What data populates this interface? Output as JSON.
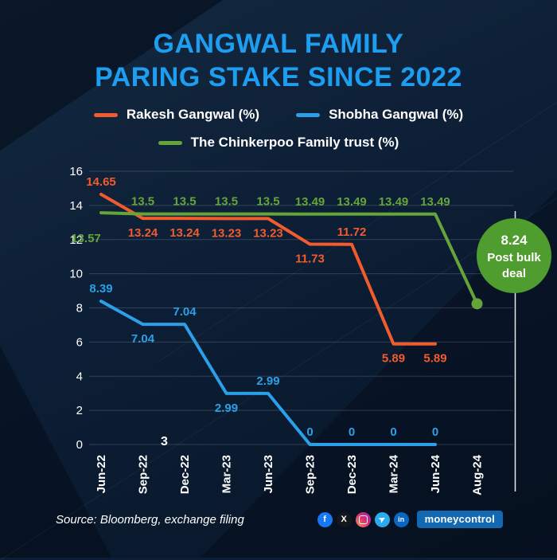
{
  "title": {
    "line1": "GANGWAL FAMILY",
    "line2": "PARING STAKE SINCE 2022"
  },
  "colors": {
    "title_accent": "#1d9ef0",
    "background": "#0c1e35",
    "rakesh_orange": "#f25b2d",
    "shobha_blue": "#2ba0e8",
    "chinkerpoo_green": "#65a438",
    "badge_green": "#4f9d2e"
  },
  "stray_label": "3",
  "chart_data": {
    "type": "line",
    "categories": [
      "Jun-22",
      "Sep-22",
      "Dec-22",
      "Mar-23",
      "Jun-23",
      "Sep-23",
      "Dec-23",
      "Mar-24",
      "Jun-24",
      "Aug-24"
    ],
    "ylim": [
      0,
      16
    ],
    "yticks": [
      0,
      2,
      4,
      6,
      8,
      10,
      12,
      14,
      16
    ],
    "grid": "horizontal",
    "legend_position": "top",
    "series": [
      {
        "name": "Rakesh Gangwal (%)",
        "color": "#f25b2d",
        "values": [
          14.65,
          13.24,
          13.24,
          13.23,
          13.23,
          11.73,
          11.72,
          5.89,
          5.89,
          null
        ],
        "labels": [
          "14.65",
          "13.24",
          "13.24",
          "13.23",
          "13.23",
          "11.73",
          "11.72",
          "5.89",
          "5.89",
          ""
        ],
        "label_pos": [
          "above",
          "below",
          "below",
          "below",
          "below",
          "below",
          "above",
          "below",
          "below",
          "none"
        ],
        "end_dot": false
      },
      {
        "name": "Shobha Gangwal (%)",
        "color": "#2ba0e8",
        "values": [
          8.39,
          7.04,
          7.04,
          2.99,
          2.99,
          0,
          0,
          0,
          0,
          null
        ],
        "labels": [
          "8.39",
          "7.04",
          "7.04",
          "2.99",
          "2.99",
          "0",
          "0",
          "0",
          "0",
          ""
        ],
        "label_pos": [
          "above",
          "below",
          "above",
          "below",
          "above",
          "above",
          "above",
          "above",
          "above",
          "none"
        ],
        "end_dot": false
      },
      {
        "name": "The Chinkerpoo Family trust (%)",
        "color": "#65a438",
        "values": [
          13.57,
          13.5,
          13.5,
          13.5,
          13.5,
          13.49,
          13.49,
          13.49,
          13.49,
          8.24
        ],
        "labels": [
          "13.57",
          "13.5",
          "13.5",
          "13.5",
          "13.5",
          "13.49",
          "13.49",
          "13.49",
          "13.49",
          ""
        ],
        "label_pos": [
          "below-left",
          "above",
          "above",
          "above",
          "above",
          "above",
          "above",
          "above",
          "above",
          "none"
        ],
        "end_dot": true
      }
    ],
    "annotation": {
      "lines": [
        "8.24",
        "Post bulk",
        "deal"
      ],
      "color": "#4f9d2e",
      "attached_category": "Aug-24"
    }
  },
  "footer": {
    "source": "Source: Bloomberg, exchange filing",
    "logo_text": "moneycontrol",
    "social": [
      {
        "name": "facebook-icon",
        "cls": "fb",
        "glyph": "f"
      },
      {
        "name": "x-icon",
        "cls": "x",
        "glyph": "X"
      },
      {
        "name": "instagram-icon",
        "cls": "ig",
        "glyph": ""
      },
      {
        "name": "telegram-icon",
        "cls": "tg",
        "glyph": "➤"
      },
      {
        "name": "linkedin-icon",
        "cls": "li",
        "glyph": "in"
      }
    ]
  }
}
